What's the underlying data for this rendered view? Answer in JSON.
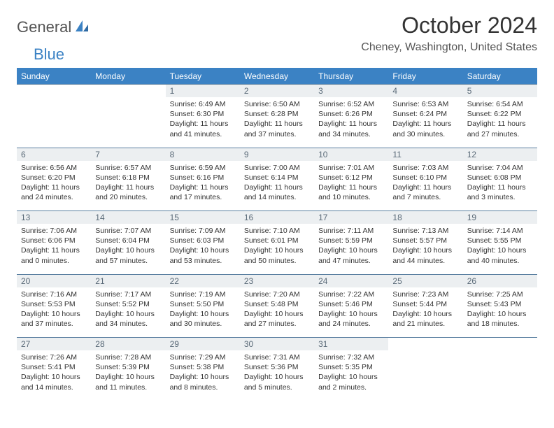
{
  "header": {
    "logo_general": "General",
    "logo_blue": "Blue",
    "title": "October 2024",
    "location": "Cheney, Washington, United States"
  },
  "colors": {
    "accent": "#3b82c4",
    "header_bg": "#3b82c4",
    "header_fg": "#ffffff",
    "daynum_bg": "#eceff1",
    "daynum_fg": "#5a6a78",
    "rule": "#5a7fa0",
    "body_text": "#333333"
  },
  "dayNames": [
    "Sunday",
    "Monday",
    "Tuesday",
    "Wednesday",
    "Thursday",
    "Friday",
    "Saturday"
  ],
  "weeks": [
    [
      null,
      null,
      {
        "n": "1",
        "sr": "6:49 AM",
        "ss": "6:30 PM",
        "dl": "11 hours and 41 minutes."
      },
      {
        "n": "2",
        "sr": "6:50 AM",
        "ss": "6:28 PM",
        "dl": "11 hours and 37 minutes."
      },
      {
        "n": "3",
        "sr": "6:52 AM",
        "ss": "6:26 PM",
        "dl": "11 hours and 34 minutes."
      },
      {
        "n": "4",
        "sr": "6:53 AM",
        "ss": "6:24 PM",
        "dl": "11 hours and 30 minutes."
      },
      {
        "n": "5",
        "sr": "6:54 AM",
        "ss": "6:22 PM",
        "dl": "11 hours and 27 minutes."
      }
    ],
    [
      {
        "n": "6",
        "sr": "6:56 AM",
        "ss": "6:20 PM",
        "dl": "11 hours and 24 minutes."
      },
      {
        "n": "7",
        "sr": "6:57 AM",
        "ss": "6:18 PM",
        "dl": "11 hours and 20 minutes."
      },
      {
        "n": "8",
        "sr": "6:59 AM",
        "ss": "6:16 PM",
        "dl": "11 hours and 17 minutes."
      },
      {
        "n": "9",
        "sr": "7:00 AM",
        "ss": "6:14 PM",
        "dl": "11 hours and 14 minutes."
      },
      {
        "n": "10",
        "sr": "7:01 AM",
        "ss": "6:12 PM",
        "dl": "11 hours and 10 minutes."
      },
      {
        "n": "11",
        "sr": "7:03 AM",
        "ss": "6:10 PM",
        "dl": "11 hours and 7 minutes."
      },
      {
        "n": "12",
        "sr": "7:04 AM",
        "ss": "6:08 PM",
        "dl": "11 hours and 3 minutes."
      }
    ],
    [
      {
        "n": "13",
        "sr": "7:06 AM",
        "ss": "6:06 PM",
        "dl": "11 hours and 0 minutes."
      },
      {
        "n": "14",
        "sr": "7:07 AM",
        "ss": "6:04 PM",
        "dl": "10 hours and 57 minutes."
      },
      {
        "n": "15",
        "sr": "7:09 AM",
        "ss": "6:03 PM",
        "dl": "10 hours and 53 minutes."
      },
      {
        "n": "16",
        "sr": "7:10 AM",
        "ss": "6:01 PM",
        "dl": "10 hours and 50 minutes."
      },
      {
        "n": "17",
        "sr": "7:11 AM",
        "ss": "5:59 PM",
        "dl": "10 hours and 47 minutes."
      },
      {
        "n": "18",
        "sr": "7:13 AM",
        "ss": "5:57 PM",
        "dl": "10 hours and 44 minutes."
      },
      {
        "n": "19",
        "sr": "7:14 AM",
        "ss": "5:55 PM",
        "dl": "10 hours and 40 minutes."
      }
    ],
    [
      {
        "n": "20",
        "sr": "7:16 AM",
        "ss": "5:53 PM",
        "dl": "10 hours and 37 minutes."
      },
      {
        "n": "21",
        "sr": "7:17 AM",
        "ss": "5:52 PM",
        "dl": "10 hours and 34 minutes."
      },
      {
        "n": "22",
        "sr": "7:19 AM",
        "ss": "5:50 PM",
        "dl": "10 hours and 30 minutes."
      },
      {
        "n": "23",
        "sr": "7:20 AM",
        "ss": "5:48 PM",
        "dl": "10 hours and 27 minutes."
      },
      {
        "n": "24",
        "sr": "7:22 AM",
        "ss": "5:46 PM",
        "dl": "10 hours and 24 minutes."
      },
      {
        "n": "25",
        "sr": "7:23 AM",
        "ss": "5:44 PM",
        "dl": "10 hours and 21 minutes."
      },
      {
        "n": "26",
        "sr": "7:25 AM",
        "ss": "5:43 PM",
        "dl": "10 hours and 18 minutes."
      }
    ],
    [
      {
        "n": "27",
        "sr": "7:26 AM",
        "ss": "5:41 PM",
        "dl": "10 hours and 14 minutes."
      },
      {
        "n": "28",
        "sr": "7:28 AM",
        "ss": "5:39 PM",
        "dl": "10 hours and 11 minutes."
      },
      {
        "n": "29",
        "sr": "7:29 AM",
        "ss": "5:38 PM",
        "dl": "10 hours and 8 minutes."
      },
      {
        "n": "30",
        "sr": "7:31 AM",
        "ss": "5:36 PM",
        "dl": "10 hours and 5 minutes."
      },
      {
        "n": "31",
        "sr": "7:32 AM",
        "ss": "5:35 PM",
        "dl": "10 hours and 2 minutes."
      },
      null,
      null
    ]
  ],
  "labels": {
    "sunrise": "Sunrise:",
    "sunset": "Sunset:",
    "daylight": "Daylight:"
  }
}
